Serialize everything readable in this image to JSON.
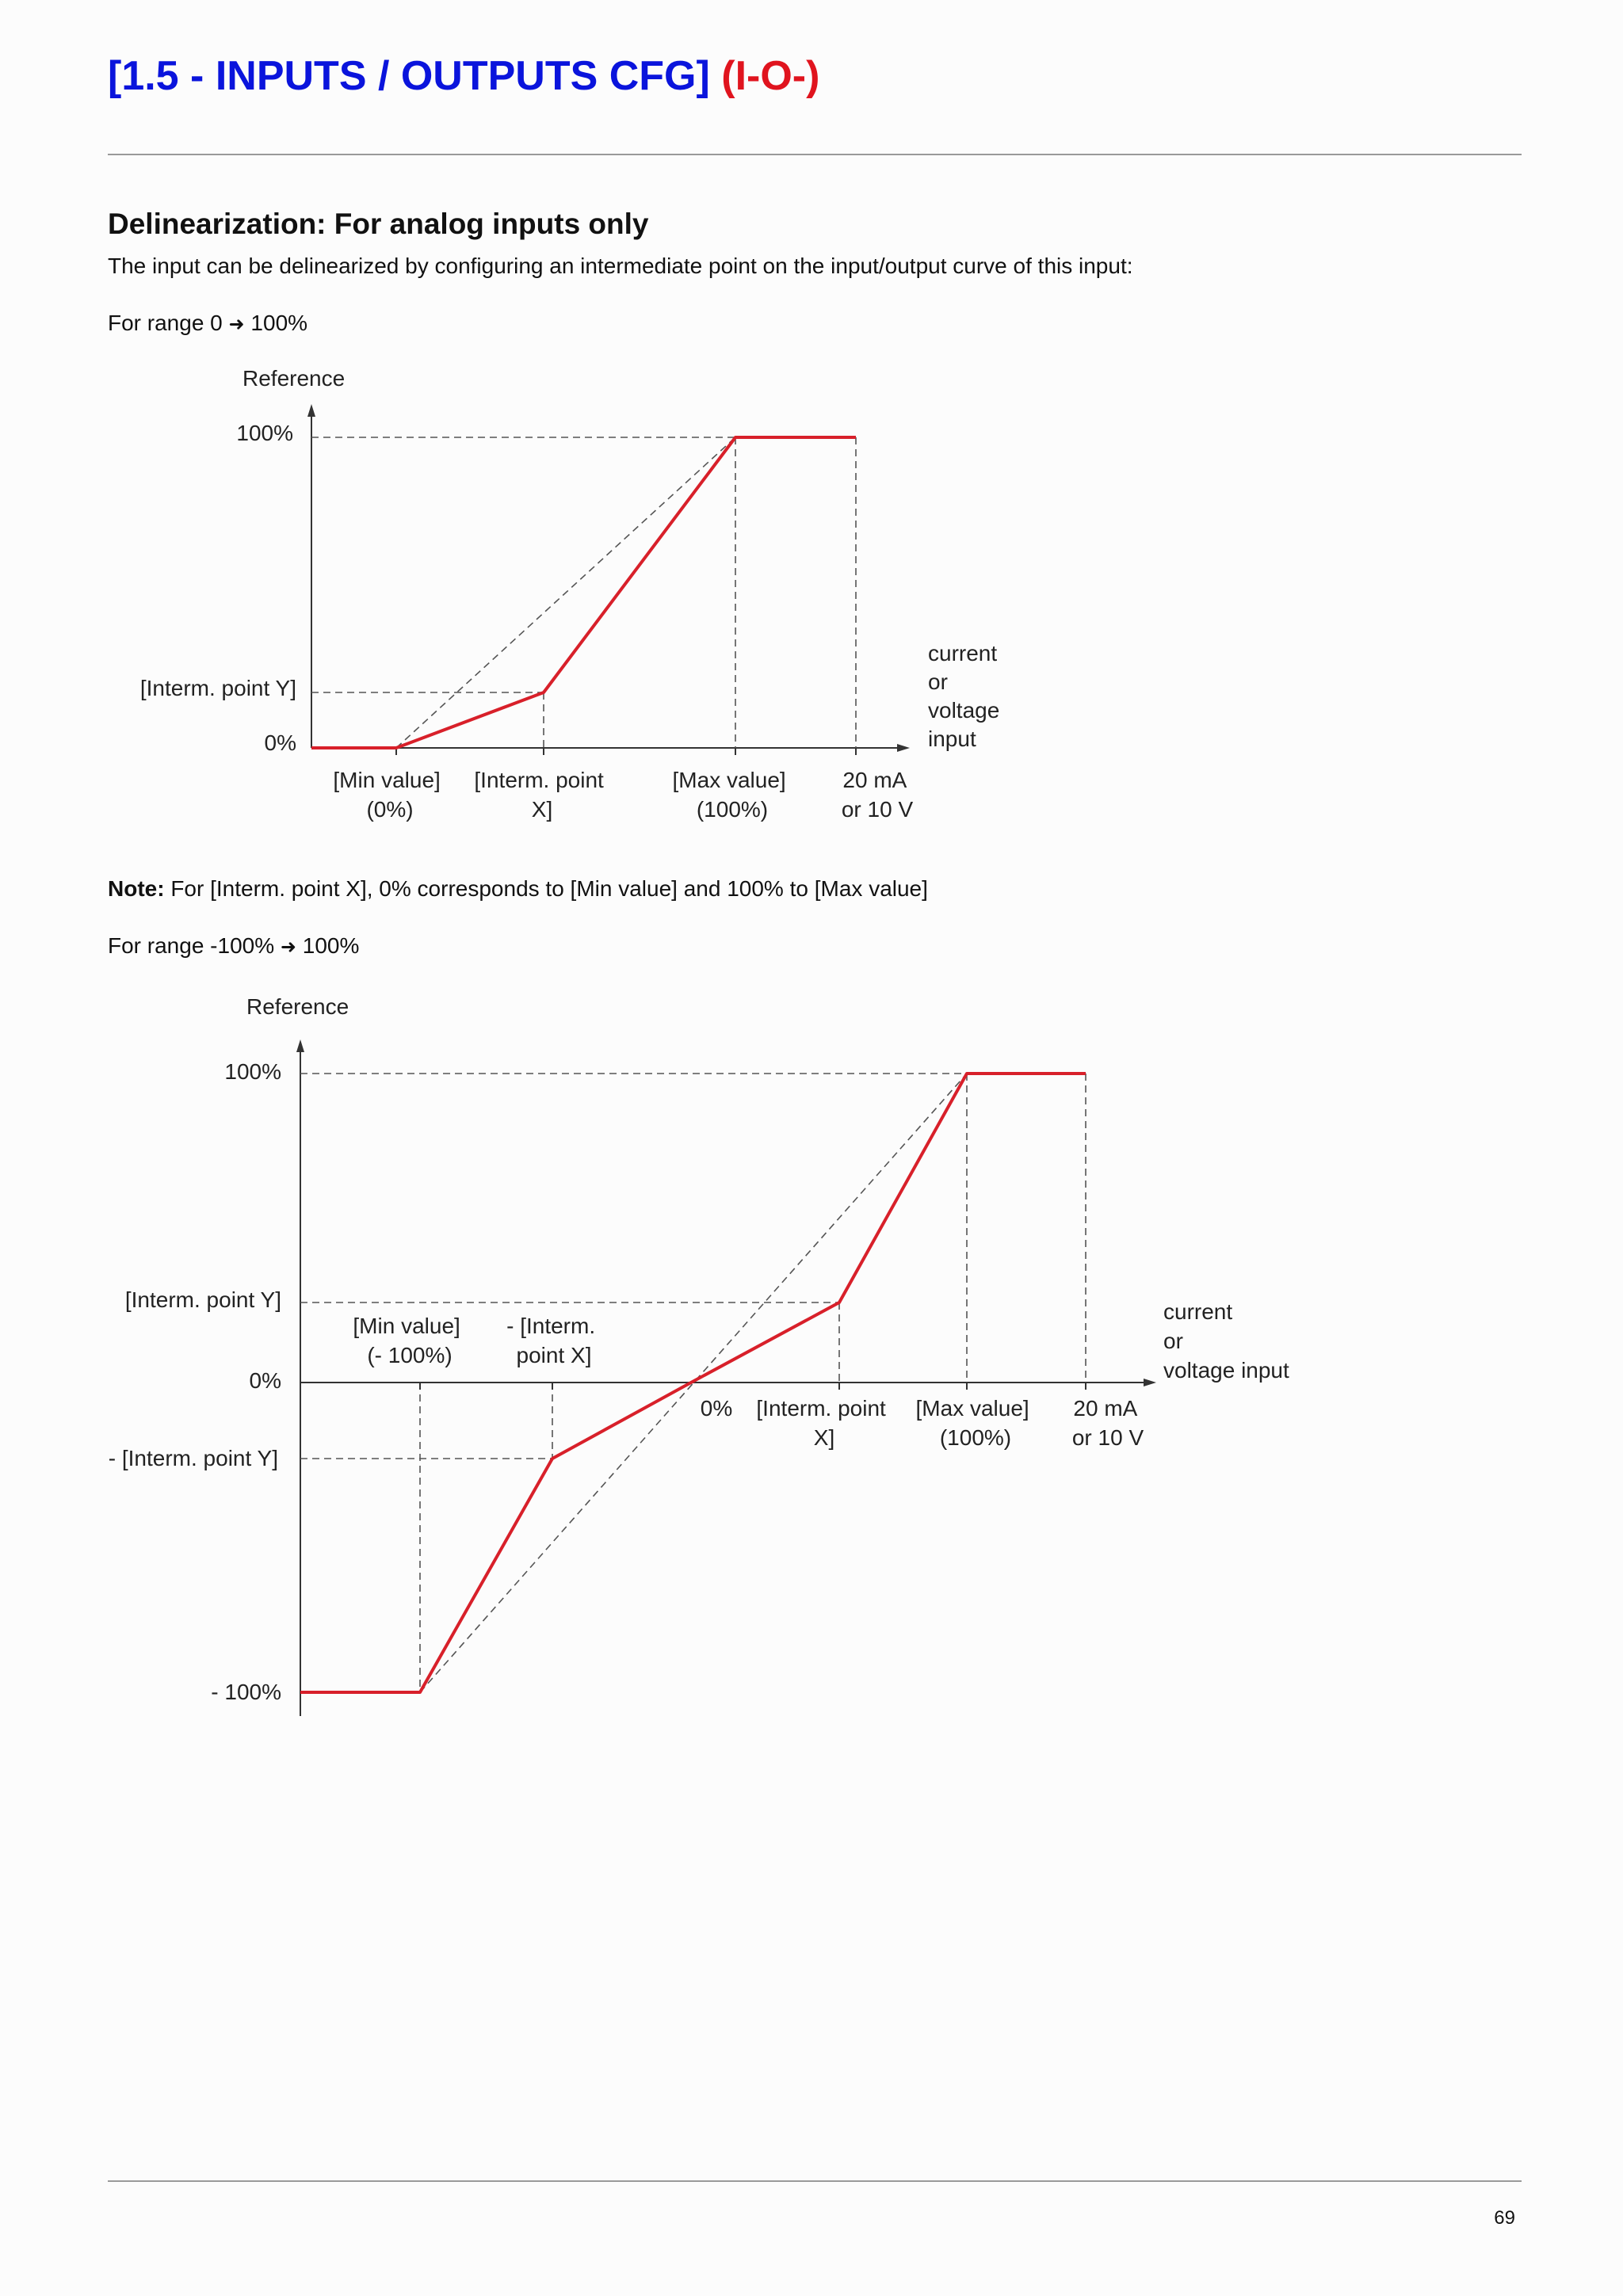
{
  "header": {
    "title": "[1.5 - INPUTS / OUTPUTS CFG]",
    "code": "(I-O-)",
    "title_color": "#0a14dc",
    "code_color": "#e0141e"
  },
  "section": {
    "heading": "Delinearization: For analog inputs only",
    "intro": "The input can be delinearized by configuring an intermediate point on the input/output curve of this input:"
  },
  "range1": {
    "label_before": "For range 0",
    "arrow": "➜",
    "label_after": "100%"
  },
  "note": {
    "label": "Note:",
    "text": "For [Interm. point X], 0% corresponds to [Min value] and 100% to [Max value]"
  },
  "range2": {
    "label_before": "For range -100%",
    "arrow": "➜",
    "label_after": "100%"
  },
  "page_number": "69",
  "curve_color": "#d8202a",
  "chart_data": [
    {
      "type": "line",
      "ylabel": "Reference",
      "xlabel_lines": [
        "current",
        "or",
        "voltage",
        "input"
      ],
      "y_tick_labels": [
        "100%",
        "[Interm. point Y]",
        "0%"
      ],
      "x_tick_labels": [
        {
          "lines": [
            "[Min value]",
            "(0%)"
          ]
        },
        {
          "lines": [
            "[Interm. point",
            "X]"
          ]
        },
        {
          "lines": [
            "[Max value]",
            "(100%)"
          ]
        },
        {
          "lines": [
            "20 mA",
            "or 10 V"
          ]
        }
      ],
      "series": [
        {
          "style": "solid-red",
          "x": [
            "origin",
            "[Min value]",
            "[Interm. point X]",
            "[Max value]",
            "20 mA or 10 V"
          ],
          "y": [
            "0%",
            "0%",
            "[Interm. point Y]",
            "100%",
            "100%"
          ]
        },
        {
          "style": "dashed",
          "x": [
            "[Min value]",
            "[Max value]"
          ],
          "y": [
            "0%",
            "100%"
          ]
        }
      ]
    },
    {
      "type": "line",
      "ylabel": "Reference",
      "xlabel_lines": [
        "current",
        "or",
        "voltage input"
      ],
      "y_tick_labels": [
        "100%",
        "[Interm. point Y]",
        "0%",
        "- [Interm. point Y]",
        "- 100%"
      ],
      "x_tick_labels": [
        {
          "lines": [
            "[Min value]",
            "(- 100%)"
          ]
        },
        {
          "lines": [
            "- [Interm.",
            "point X]"
          ]
        },
        {
          "lines": [
            "0%"
          ]
        },
        {
          "lines": [
            "[Interm. point",
            "X]"
          ]
        },
        {
          "lines": [
            "[Max value]",
            "(100%)"
          ]
        },
        {
          "lines": [
            "20 mA",
            "or 10 V"
          ]
        }
      ],
      "series": [
        {
          "style": "solid-red",
          "x": [
            "origin",
            "[Min value]",
            "- [Interm. point X]",
            "0%",
            "[Interm. point X]",
            "[Max value]",
            "20 mA or 10 V"
          ],
          "y": [
            "- 100%",
            "- 100%",
            "- [Interm. point Y]",
            "0%",
            "[Interm. point Y]",
            "100%",
            "100%"
          ]
        },
        {
          "style": "dashed",
          "x": [
            "[Min value]",
            "[Max value]"
          ],
          "y": [
            "- 100%",
            "100%"
          ]
        }
      ]
    }
  ]
}
